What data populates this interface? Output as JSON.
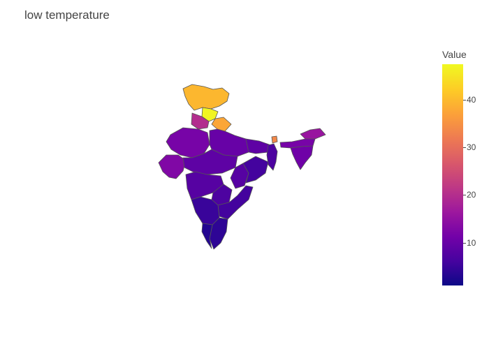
{
  "title": "low temperature",
  "colorbar": {
    "title": "Value",
    "ticks": [
      "40",
      "30",
      "20",
      "10"
    ],
    "tick_values": [
      40,
      30,
      20,
      10
    ],
    "min": 1,
    "max": 47.5,
    "colorscale": [
      "#0d0887",
      "#46039f",
      "#7201a8",
      "#9c179e",
      "#bd3786",
      "#d8576b",
      "#ed7953",
      "#fb9f3a",
      "#fdca26",
      "#f0f921"
    ]
  },
  "chart_data": {
    "type": "choropleth",
    "region": "India (states)",
    "variable": "Value",
    "regions": [
      {
        "name": "Jammu and Kashmir",
        "value": 40
      },
      {
        "name": "Himachal Pradesh",
        "value": 47
      },
      {
        "name": "Punjab",
        "value": 20
      },
      {
        "name": "Uttarakhand",
        "value": 38
      },
      {
        "name": "Sikkim",
        "value": 34
      },
      {
        "name": "Rajasthan",
        "value": 12
      },
      {
        "name": "Uttar Pradesh",
        "value": 10
      },
      {
        "name": "Bihar",
        "value": 9
      },
      {
        "name": "Gujarat",
        "value": 13
      },
      {
        "name": "Madhya Pradesh",
        "value": 9
      },
      {
        "name": "West Bengal",
        "value": 7
      },
      {
        "name": "Arunachal Pradesh",
        "value": 16
      },
      {
        "name": "Assam",
        "value": 12
      },
      {
        "name": "Northeast states",
        "value": 11
      },
      {
        "name": "Maharashtra",
        "value": 8
      },
      {
        "name": "Chhattisgarh",
        "value": 8
      },
      {
        "name": "Odisha",
        "value": 6
      },
      {
        "name": "Telangana",
        "value": 7
      },
      {
        "name": "Andhra Pradesh",
        "value": 6
      },
      {
        "name": "Karnataka",
        "value": 5
      },
      {
        "name": "Tamil Nadu",
        "value": 4
      },
      {
        "name": "Kerala",
        "value": 3
      }
    ]
  }
}
